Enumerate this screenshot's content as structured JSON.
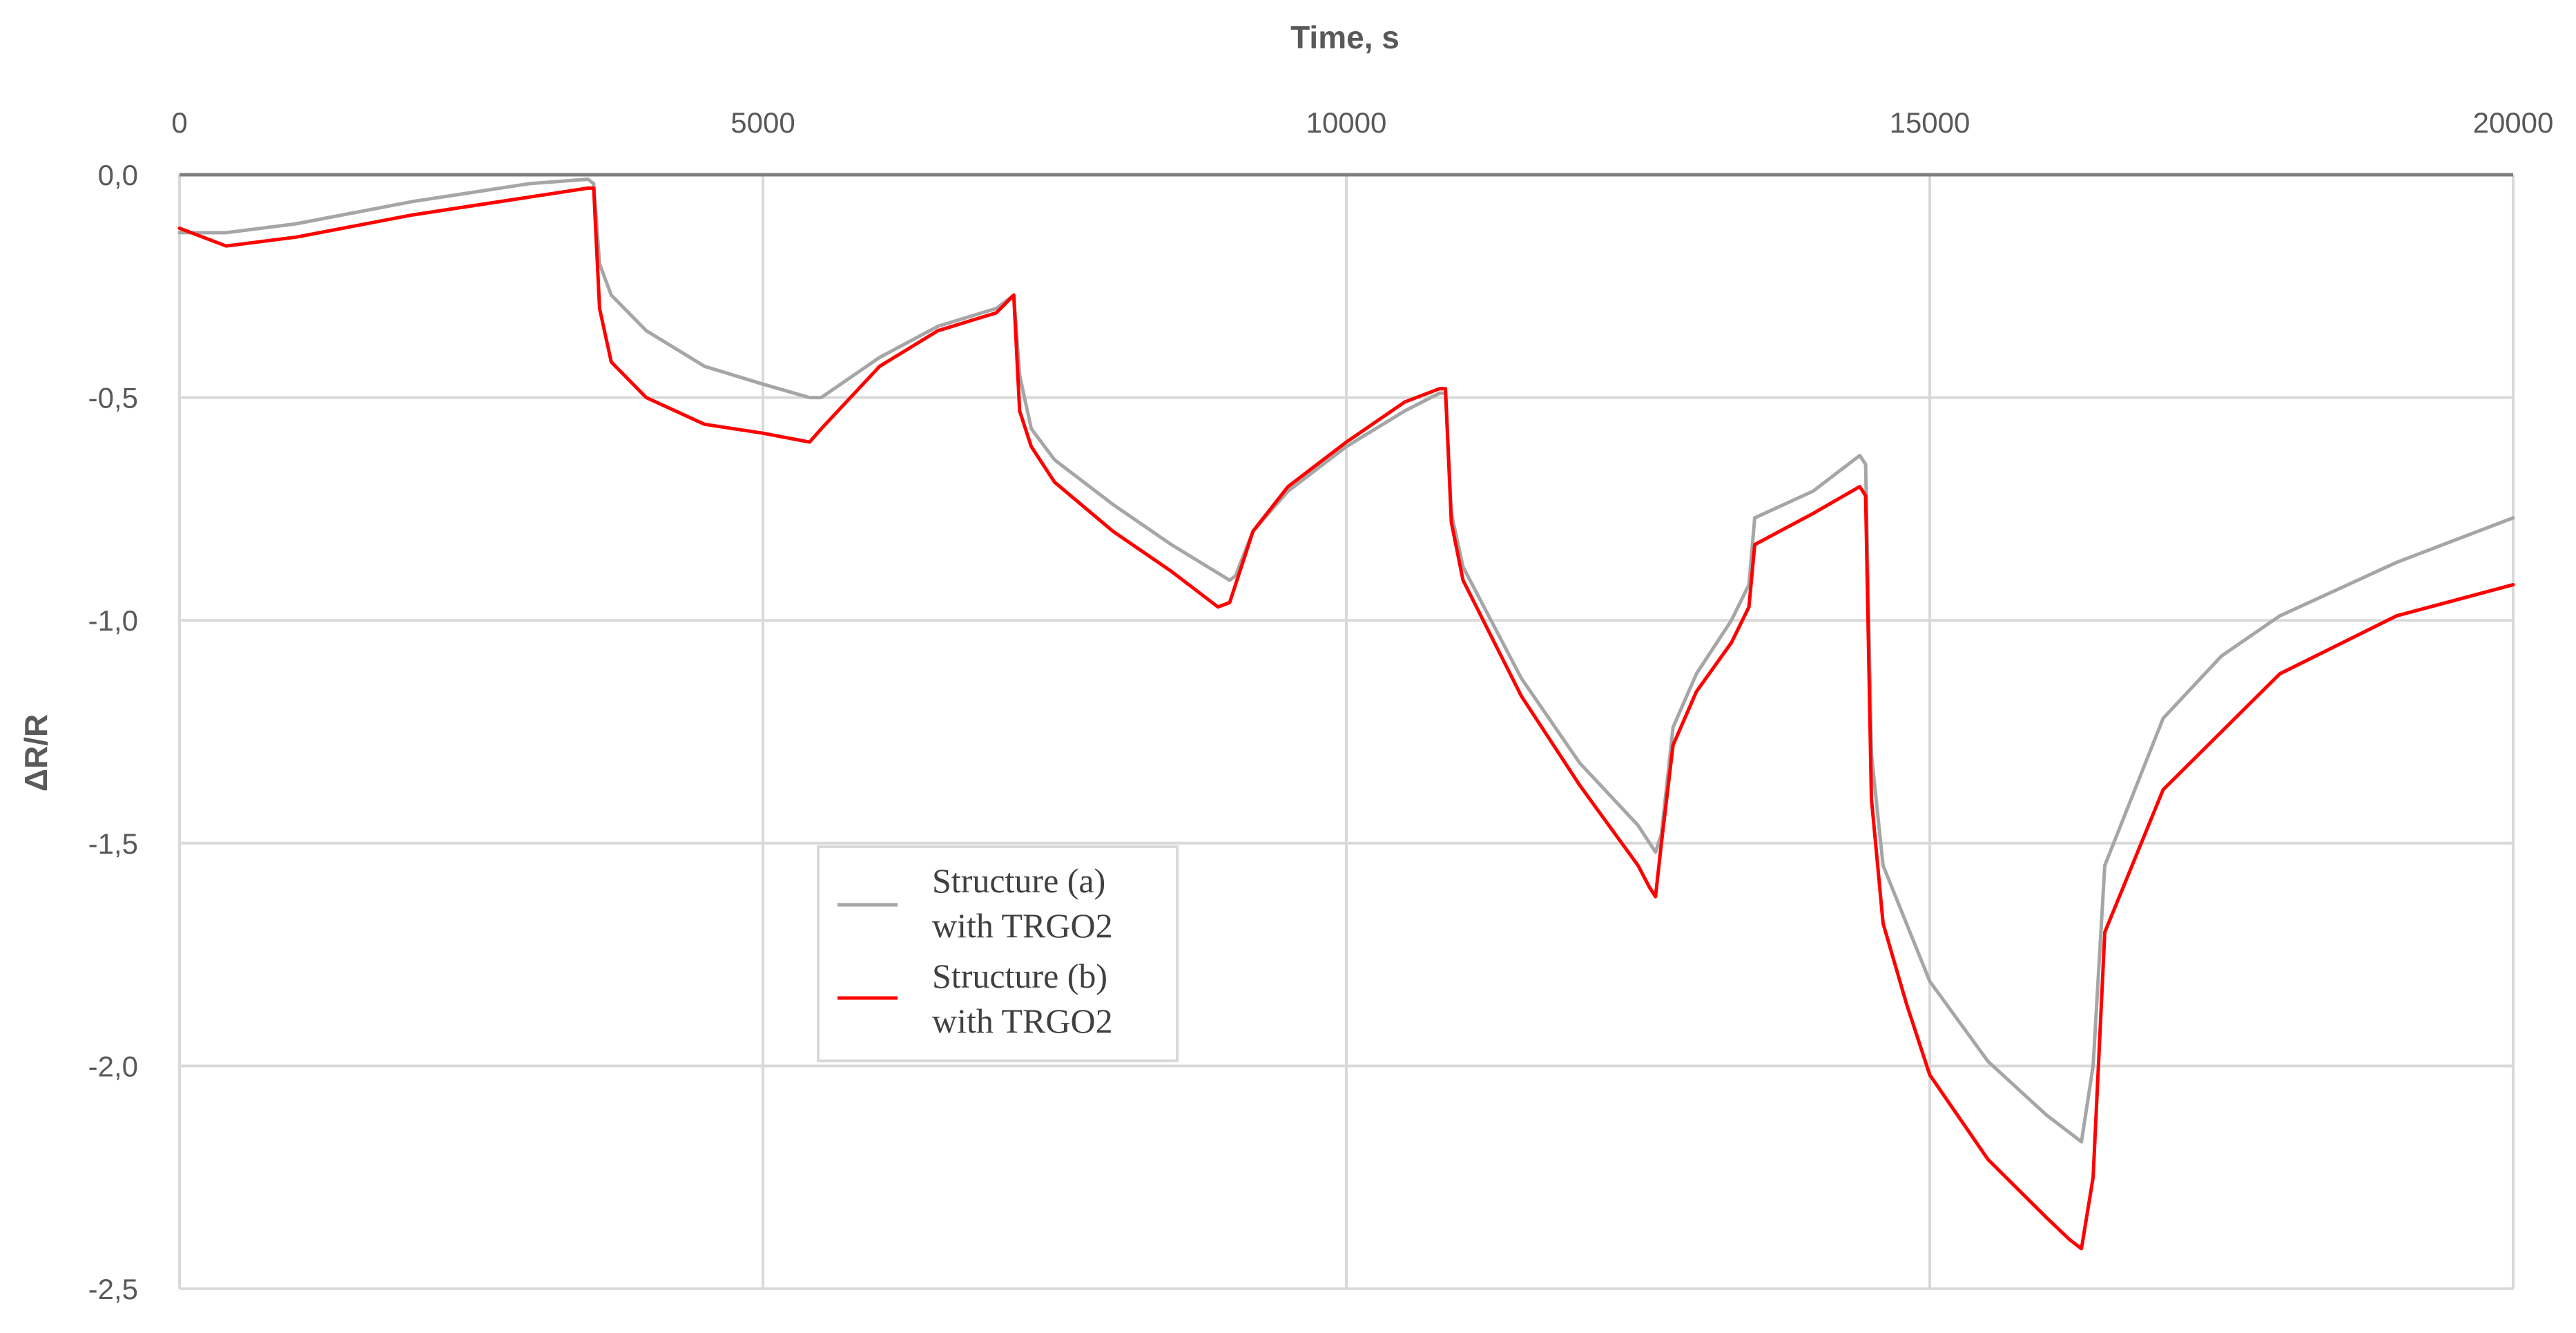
{
  "chart_data": {
    "type": "line",
    "title": "",
    "xlabel": "Time, s",
    "ylabel": "ΔR/R",
    "xlim": [
      0,
      20000
    ],
    "ylim": [
      -2.5,
      0.0
    ],
    "x_ticks": [
      0,
      5000,
      10000,
      15000,
      20000
    ],
    "x_tick_labels": [
      "0",
      "5000",
      "10000",
      "15000",
      "20000"
    ],
    "y_ticks": [
      0.0,
      -0.5,
      -1.0,
      -1.5,
      -2.0,
      -2.5
    ],
    "y_tick_labels": [
      "0,0",
      "-0,5",
      "-1,0",
      "-1,5",
      "-2,0",
      "-2,5"
    ],
    "x_axis_position": "top",
    "grid": true,
    "legend_position": "center-left",
    "series": [
      {
        "name": "Structure (a) with TRGO2",
        "legend_lines": [
          "Structure (a)",
          "with TRGO2"
        ],
        "color": "#a6a6a6",
        "x": [
          0,
          400,
          1000,
          2000,
          3000,
          3500,
          3550,
          3600,
          3700,
          4000,
          4500,
          5000,
          5400,
          5500,
          6000,
          6500,
          7000,
          7150,
          7200,
          7300,
          7500,
          8000,
          8500,
          9000,
          9050,
          9200,
          9500,
          10000,
          10500,
          10800,
          10850,
          10900,
          11000,
          11500,
          12000,
          12500,
          12650,
          12700,
          12800,
          13000,
          13300,
          13450,
          13500,
          14000,
          14400,
          14450,
          14500,
          14600,
          14800,
          15000,
          15500,
          16000,
          16200,
          16300,
          16400,
          16500,
          17000,
          17500,
          18000,
          19000,
          20000
        ],
        "y": [
          -0.13,
          -0.13,
          -0.11,
          -0.06,
          -0.02,
          -0.01,
          -0.02,
          -0.2,
          -0.27,
          -0.35,
          -0.43,
          -0.47,
          -0.5,
          -0.5,
          -0.41,
          -0.34,
          -0.3,
          -0.27,
          -0.45,
          -0.57,
          -0.64,
          -0.74,
          -0.83,
          -0.91,
          -0.9,
          -0.8,
          -0.71,
          -0.61,
          -0.53,
          -0.49,
          -0.49,
          -0.76,
          -0.88,
          -1.13,
          -1.32,
          -1.46,
          -1.52,
          -1.48,
          -1.24,
          -1.12,
          -1.0,
          -0.92,
          -0.77,
          -0.71,
          -0.63,
          -0.65,
          -1.3,
          -1.55,
          -1.68,
          -1.81,
          -1.99,
          -2.11,
          -2.15,
          -2.17,
          -2.0,
          -1.55,
          -1.22,
          -1.08,
          -0.99,
          -0.87,
          -0.77
        ]
      },
      {
        "name": "Structure (b) with TRGO2",
        "legend_lines": [
          "Structure (b)",
          "with TRGO2"
        ],
        "color": "#ff0000",
        "x": [
          0,
          400,
          1000,
          2000,
          3000,
          3500,
          3550,
          3600,
          3700,
          4000,
          4500,
          5000,
          5400,
          5500,
          6000,
          6500,
          7000,
          7150,
          7200,
          7300,
          7500,
          8000,
          8500,
          8900,
          9000,
          9200,
          9500,
          10000,
          10500,
          10800,
          10850,
          10900,
          11000,
          11500,
          12000,
          12500,
          12600,
          12650,
          12700,
          12800,
          13000,
          13300,
          13450,
          13500,
          14000,
          14400,
          14450,
          14500,
          14600,
          14800,
          15000,
          15500,
          16000,
          16200,
          16300,
          16400,
          16500,
          17000,
          17500,
          18000,
          19000,
          20000
        ],
        "y": [
          -0.12,
          -0.16,
          -0.14,
          -0.09,
          -0.05,
          -0.03,
          -0.03,
          -0.3,
          -0.42,
          -0.5,
          -0.56,
          -0.58,
          -0.6,
          -0.57,
          -0.43,
          -0.35,
          -0.31,
          -0.27,
          -0.53,
          -0.61,
          -0.69,
          -0.8,
          -0.89,
          -0.97,
          -0.96,
          -0.8,
          -0.7,
          -0.6,
          -0.51,
          -0.48,
          -0.48,
          -0.78,
          -0.91,
          -1.17,
          -1.37,
          -1.55,
          -1.6,
          -1.62,
          -1.5,
          -1.28,
          -1.16,
          -1.05,
          -0.97,
          -0.83,
          -0.76,
          -0.7,
          -0.72,
          -1.4,
          -1.68,
          -1.86,
          -2.02,
          -2.21,
          -2.34,
          -2.39,
          -2.41,
          -2.25,
          -1.7,
          -1.38,
          -1.25,
          -1.12,
          -0.99,
          -0.92
        ]
      }
    ]
  }
}
